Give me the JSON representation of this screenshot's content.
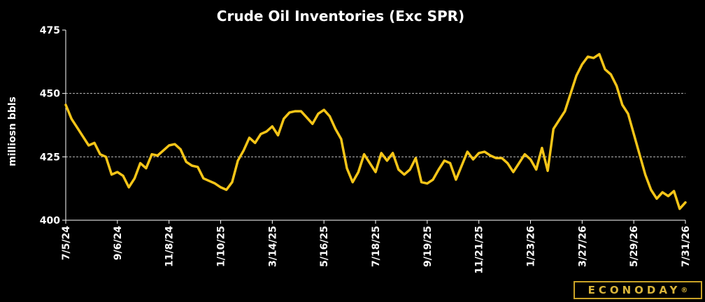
{
  "chart_data": {
    "type": "line",
    "title": "Crude Oil Inventories (Exc SPR)",
    "ylabel": "milliosn bbls",
    "ylim": [
      400,
      475
    ],
    "yticks": [
      400,
      425,
      450,
      475
    ],
    "grid": "horizontal dashed at 425 and 450",
    "line_color": "#f5c518",
    "xtick_labels": [
      "7/5/24",
      "9/6/24",
      "11/8/24",
      "1/10/25",
      "3/14/25",
      "5/16/25",
      "7/18/25",
      "9/19/25",
      "11/21/25",
      "1/23/26",
      "3/27/26",
      "5/29/26",
      "7/31/26"
    ],
    "series": [
      {
        "values": [
          445.5,
          440,
          436.5,
          433,
          429.5,
          430.5,
          426,
          425,
          418,
          419,
          417.5,
          413,
          416.5,
          422.5,
          420.5,
          426,
          425.5,
          427.5,
          429.5,
          430,
          428,
          423,
          421.5,
          421,
          416.5,
          415.5,
          414.5,
          413,
          412,
          415,
          423.5,
          427.5,
          432.5,
          430.5,
          434,
          435,
          437,
          433.5,
          440,
          442.5,
          443,
          443,
          440.5,
          438,
          442,
          443.5,
          441,
          436,
          432,
          420.5,
          415,
          419,
          426,
          422.5,
          419,
          426.5,
          423.5,
          426.5,
          420,
          418,
          420,
          424.5,
          415,
          414.5,
          416,
          420,
          423.5,
          422.5,
          416,
          421.5,
          427,
          424,
          426.5,
          427,
          425.5,
          424.5,
          424.5,
          422.5,
          419,
          422.5,
          426,
          424,
          420,
          428.5,
          419.5,
          436,
          439.5,
          443,
          450,
          457,
          461.5,
          464.5,
          464,
          465.5,
          459.5,
          457.5,
          453,
          445.5,
          442,
          434,
          426,
          418,
          412,
          408.5,
          411,
          409.5,
          411.5,
          404.5,
          407
        ]
      }
    ]
  },
  "logo": {
    "text": "ECONODAY",
    "mark": "®"
  }
}
